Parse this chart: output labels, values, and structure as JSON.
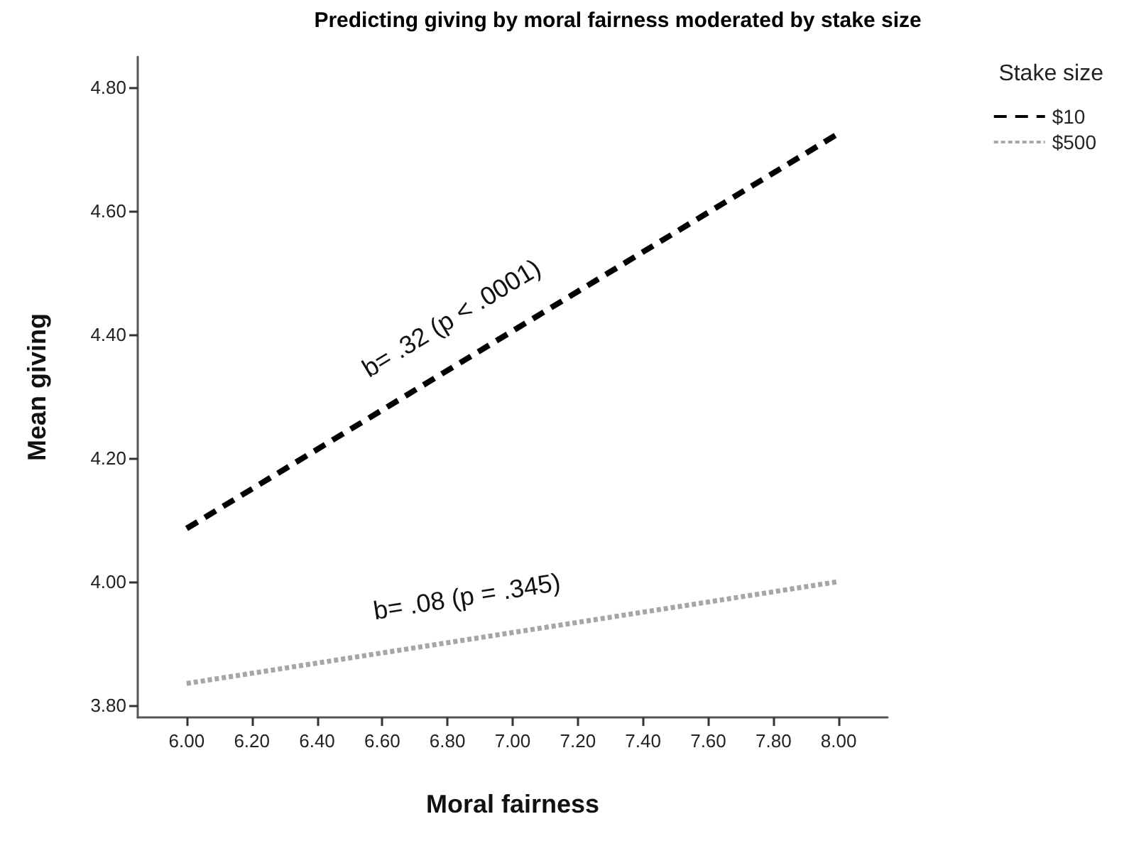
{
  "chart_data": {
    "type": "line",
    "title": "Predicting giving by moral fairness moderated by stake size",
    "xlabel": "Moral fairness",
    "ylabel": "Mean giving",
    "legend_title": "Stake size",
    "series": [
      {
        "name": "$10",
        "color": "#000000",
        "line_style": "dashed",
        "values": [
          4.086,
          4.726
        ]
      },
      {
        "name": "$500",
        "color": "#a6a6a6",
        "line_style": "dotted",
        "values": [
          3.835,
          4.0
        ]
      }
    ],
    "x": [
      6.0,
      8.0
    ],
    "annotations": [
      "b= .32 (p < .0001)",
      "b= .08 (p = .345)"
    ],
    "xlim": [
      5.85,
      8.15
    ],
    "ylim": [
      3.78,
      4.85
    ],
    "xticks": [
      {
        "value": 6.0,
        "label": "6.00"
      },
      {
        "value": 6.2,
        "label": "6.20"
      },
      {
        "value": 6.4,
        "label": "6.40"
      },
      {
        "value": 6.6,
        "label": "6.60"
      },
      {
        "value": 6.8,
        "label": "6.80"
      },
      {
        "value": 7.0,
        "label": "7.00"
      },
      {
        "value": 7.2,
        "label": "7.20"
      },
      {
        "value": 7.4,
        "label": "7.40"
      },
      {
        "value": 7.6,
        "label": "7.60"
      },
      {
        "value": 7.8,
        "label": "7.80"
      },
      {
        "value": 8.0,
        "label": "8.00"
      }
    ],
    "yticks": [
      {
        "value": 3.8,
        "label": "3.80"
      },
      {
        "value": 4.0,
        "label": "4.00"
      },
      {
        "value": 4.2,
        "label": "4.20"
      },
      {
        "value": 4.4,
        "label": "4.40"
      },
      {
        "value": 4.6,
        "label": "4.60"
      },
      {
        "value": 4.8,
        "label": "4.80"
      }
    ],
    "grid": false,
    "legend": "right",
    "marker": "none"
  }
}
